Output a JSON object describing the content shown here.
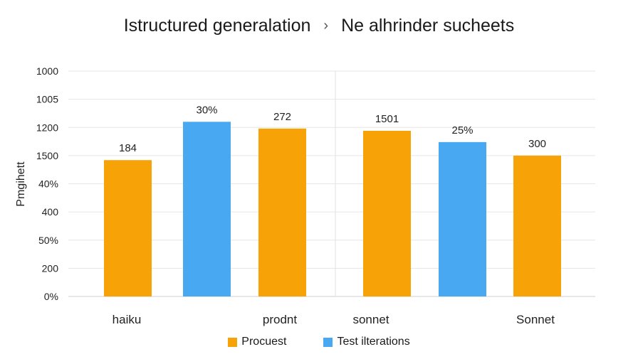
{
  "chart_data": {
    "type": "bar",
    "title": "Istructured generalation",
    "title_separator": "›",
    "subtitle": "Ne alhrinder sucheets",
    "ylabel": "Pmgihett",
    "xlabel": "",
    "y_tick_labels": [
      "1000",
      "1005",
      "1200",
      "1500",
      "40%",
      "400",
      "50%",
      "200",
      "0%"
    ],
    "category_labels": [
      "haiku",
      "prodnt",
      "sonnet",
      "Sonnet"
    ],
    "grid": true,
    "legend_position": "bottom",
    "series": [
      {
        "name": "Procuest",
        "color": "#F7A308"
      },
      {
        "name": "Test ilterations",
        "color": "#49A8F2"
      }
    ],
    "bars": [
      {
        "series": 0,
        "value_fraction": 0.605,
        "label": "184"
      },
      {
        "series": 1,
        "value_fraction": 0.775,
        "label": "30%"
      },
      {
        "series": 0,
        "value_fraction": 0.745,
        "label": "272"
      },
      {
        "series": 0,
        "value_fraction": 0.735,
        "label": "1501"
      },
      {
        "series": 1,
        "value_fraction": 0.685,
        "label": "25%"
      },
      {
        "series": 0,
        "value_fraction": 0.625,
        "label": "300"
      }
    ]
  }
}
